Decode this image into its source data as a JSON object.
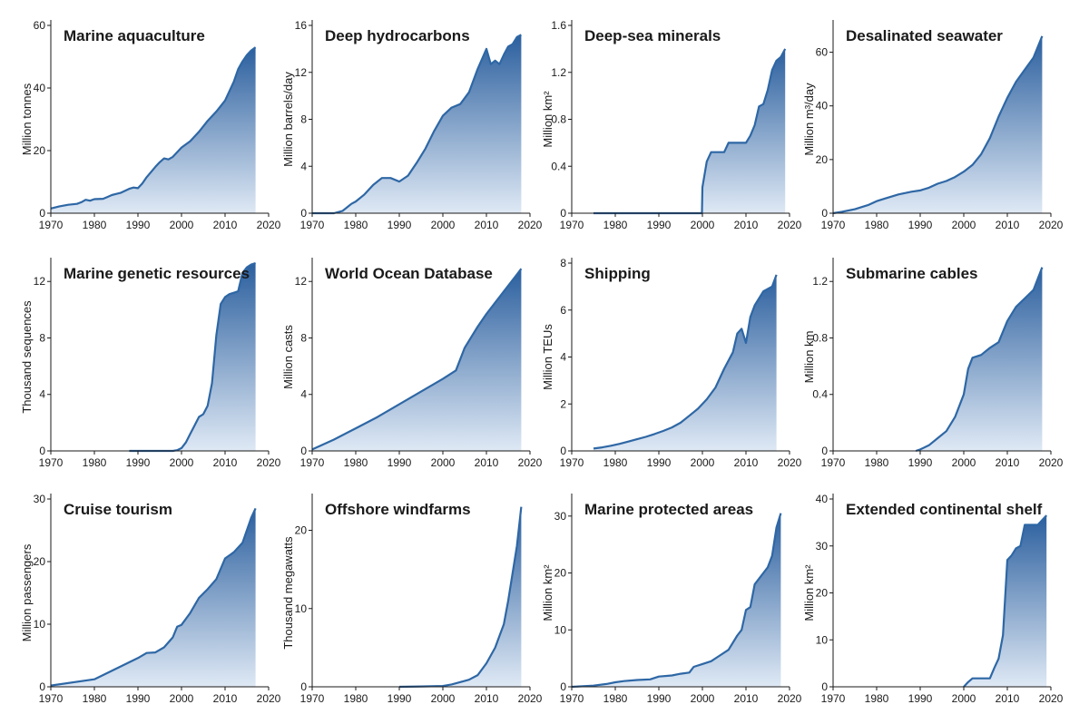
{
  "colors": {
    "line": "#2e67a5",
    "fill_top": "#2b5f9e",
    "fill_bottom": "#dfe9f5",
    "axis": "#1a1a1a"
  },
  "chart_data": [
    {
      "type": "area",
      "title": "Marine aquaculture",
      "ylabel": "Million tonnes",
      "xlim": [
        1970,
        2020
      ],
      "ylim": [
        0,
        60
      ],
      "xticks": [
        1970,
        1980,
        1990,
        2000,
        2010,
        2020
      ],
      "yticks": [
        0,
        20,
        40,
        60
      ],
      "ytick_labels": [
        "0",
        "20",
        "40",
        "60"
      ],
      "x": [
        1970,
        1972,
        1974,
        1976,
        1977,
        1978,
        1979,
        1980,
        1982,
        1983,
        1984,
        1986,
        1988,
        1989,
        1990,
        1991,
        1992,
        1994,
        1995,
        1996,
        1997,
        1998,
        2000,
        2002,
        2004,
        2006,
        2008,
        2010,
        2012,
        2013,
        2014,
        2015,
        2016,
        2017
      ],
      "y": [
        1.5,
        2.2,
        2.7,
        3.0,
        3.5,
        4.3,
        4.0,
        4.5,
        4.6,
        5.2,
        5.8,
        6.5,
        7.8,
        8.2,
        8.0,
        9.5,
        11.5,
        14.8,
        16.3,
        17.5,
        17.2,
        18.0,
        21.0,
        23.0,
        26.0,
        29.5,
        32.5,
        36.0,
        42.0,
        46.0,
        48.5,
        50.5,
        52.0,
        53.0
      ]
    },
    {
      "type": "area",
      "title": "Deep hydrocarbons",
      "ylabel": "Million barrels/day",
      "xlim": [
        1970,
        2020
      ],
      "ylim": [
        0,
        16
      ],
      "xticks": [
        1970,
        1980,
        1990,
        2000,
        2010,
        2020
      ],
      "yticks": [
        0,
        4,
        8,
        12,
        16
      ],
      "ytick_labels": [
        "0",
        "4",
        "8",
        "12",
        "16"
      ],
      "x": [
        1970,
        1975,
        1977,
        1979,
        1980,
        1982,
        1984,
        1986,
        1988,
        1990,
        1992,
        1994,
        1996,
        1998,
        2000,
        2002,
        2004,
        2006,
        2008,
        2010,
        2011,
        2012,
        2013,
        2014,
        2015,
        2016,
        2017,
        2018
      ],
      "y": [
        0,
        0,
        0.2,
        0.8,
        1.0,
        1.6,
        2.4,
        3.0,
        3.0,
        2.7,
        3.2,
        4.3,
        5.5,
        7.0,
        8.3,
        9.0,
        9.3,
        10.3,
        12.3,
        14.0,
        12.7,
        13.0,
        12.7,
        13.5,
        14.2,
        14.4,
        15.0,
        15.2
      ]
    },
    {
      "type": "area",
      "title": "Deep-sea minerals",
      "ylabel": "Million km²",
      "xlim": [
        1970,
        2020
      ],
      "ylim": [
        0,
        1.6
      ],
      "xticks": [
        1970,
        1980,
        1990,
        2000,
        2010,
        2020
      ],
      "yticks": [
        0,
        0.4,
        0.8,
        1.2,
        1.6
      ],
      "ytick_labels": [
        "0",
        "0.4",
        "0.8",
        "1.2",
        "1.6"
      ],
      "x": [
        1975,
        1999.9,
        2000,
        2001,
        2002,
        2003,
        2004,
        2005,
        2006,
        2007,
        2008,
        2009,
        2010,
        2011,
        2012,
        2013,
        2014,
        2015,
        2016,
        2017,
        2018,
        2019
      ],
      "y": [
        0,
        0,
        0.22,
        0.44,
        0.52,
        0.52,
        0.52,
        0.52,
        0.6,
        0.6,
        0.6,
        0.6,
        0.6,
        0.66,
        0.75,
        0.91,
        0.93,
        1.05,
        1.22,
        1.3,
        1.33,
        1.4
      ]
    },
    {
      "type": "area",
      "title": "Desalinated seawater",
      "ylabel": "Million m³/day",
      "xlim": [
        1970,
        2020
      ],
      "ylim": [
        0,
        70
      ],
      "xticks": [
        1970,
        1980,
        1990,
        2000,
        2010,
        2020
      ],
      "yticks": [
        0,
        20,
        40,
        60
      ],
      "ytick_labels": [
        "0",
        "20",
        "40",
        "60"
      ],
      "x": [
        1970,
        1972,
        1975,
        1978,
        1980,
        1982,
        1985,
        1988,
        1990,
        1992,
        1994,
        1996,
        1998,
        2000,
        2002,
        2004,
        2006,
        2008,
        2010,
        2012,
        2014,
        2016,
        2018
      ],
      "y": [
        0,
        0.5,
        1.5,
        3.0,
        4.5,
        5.5,
        7.0,
        8.0,
        8.5,
        9.5,
        11.0,
        12.0,
        13.5,
        15.5,
        18.0,
        22.0,
        28.0,
        36.0,
        43.0,
        49.0,
        53.5,
        58.0,
        66.0
      ]
    },
    {
      "type": "area",
      "title": "Marine genetic resources",
      "ylabel": "Thousand sequences",
      "xlim": [
        1970,
        2020
      ],
      "ylim": [
        0,
        13.3
      ],
      "xticks": [
        1970,
        1980,
        1990,
        2000,
        2010,
        2020
      ],
      "yticks": [
        0,
        4,
        8,
        12
      ],
      "ytick_labels": [
        "0",
        "4",
        "8",
        "12"
      ],
      "x": [
        1988,
        1995,
        1998,
        1999,
        2000,
        2001,
        2002,
        2003,
        2004,
        2005,
        2006,
        2007,
        2008,
        2009,
        2010,
        2011,
        2012,
        2013,
        2014,
        2015,
        2016,
        2017
      ],
      "y": [
        0,
        0,
        0,
        0.05,
        0.2,
        0.6,
        1.2,
        1.8,
        2.4,
        2.6,
        3.2,
        4.8,
        8.2,
        10.4,
        10.9,
        11.1,
        11.2,
        11.3,
        12.6,
        13.0,
        13.2,
        13.3
      ]
    },
    {
      "type": "area",
      "title": "World Ocean Database",
      "ylabel": "Million casts",
      "xlim": [
        1970,
        2020
      ],
      "ylim": [
        0,
        13.3
      ],
      "xticks": [
        1970,
        1980,
        1990,
        2000,
        2010,
        2020
      ],
      "yticks": [
        0,
        4,
        8,
        12
      ],
      "ytick_labels": [
        "0",
        "4",
        "8",
        "12"
      ],
      "x": [
        1970,
        1975,
        1980,
        1985,
        1990,
        1995,
        2000,
        2003,
        2005,
        2008,
        2010,
        2012,
        2015,
        2017,
        2018
      ],
      "y": [
        0.1,
        0.8,
        1.6,
        2.4,
        3.3,
        4.2,
        5.1,
        5.7,
        7.3,
        8.8,
        9.7,
        10.5,
        11.7,
        12.5,
        12.9
      ]
    },
    {
      "type": "area",
      "title": "Shipping",
      "ylabel": "Million TEUs",
      "xlim": [
        1970,
        2020
      ],
      "ylim": [
        0,
        8
      ],
      "xticks": [
        1970,
        1980,
        1990,
        2000,
        2010,
        2020
      ],
      "yticks": [
        0,
        2,
        4,
        6,
        8
      ],
      "ytick_labels": [
        "0",
        "2",
        "4",
        "6",
        "8"
      ],
      "x": [
        1975,
        1977,
        1979,
        1981,
        1983,
        1985,
        1987,
        1989,
        1991,
        1993,
        1995,
        1997,
        1999,
        2001,
        2003,
        2005,
        2007,
        2008,
        2009,
        2010,
        2011,
        2012,
        2013,
        2014,
        2015,
        2016,
        2017
      ],
      "y": [
        0.1,
        0.15,
        0.22,
        0.3,
        0.4,
        0.5,
        0.6,
        0.72,
        0.85,
        1.0,
        1.2,
        1.5,
        1.8,
        2.2,
        2.7,
        3.5,
        4.2,
        5.0,
        5.2,
        4.6,
        5.7,
        6.2,
        6.5,
        6.8,
        6.9,
        7.0,
        7.5
      ]
    },
    {
      "type": "area",
      "title": "Submarine cables",
      "ylabel": "Million km",
      "xlim": [
        1970,
        2020
      ],
      "ylim": [
        0,
        1.33
      ],
      "xticks": [
        1970,
        1980,
        1990,
        2000,
        2010,
        2020
      ],
      "yticks": [
        0,
        0.4,
        0.8,
        1.2
      ],
      "ytick_labels": [
        "0",
        "0.4",
        "0.8",
        "1.2"
      ],
      "x": [
        1989,
        1990,
        1992,
        1994,
        1996,
        1998,
        2000,
        2001,
        2002,
        2004,
        2006,
        2008,
        2010,
        2012,
        2014,
        2016,
        2018
      ],
      "y": [
        0,
        0.01,
        0.04,
        0.09,
        0.14,
        0.24,
        0.4,
        0.58,
        0.66,
        0.68,
        0.73,
        0.77,
        0.92,
        1.02,
        1.08,
        1.14,
        1.3
      ]
    },
    {
      "type": "area",
      "title": "Cruise tourism",
      "ylabel": "Million passengers",
      "xlim": [
        1970,
        2020
      ],
      "ylim": [
        0,
        30
      ],
      "xticks": [
        1970,
        1980,
        1990,
        2000,
        2010,
        2020
      ],
      "yticks": [
        0,
        10,
        20,
        30
      ],
      "ytick_labels": [
        "0",
        "10",
        "20",
        "30"
      ],
      "x": [
        1970,
        1980,
        1990,
        1992,
        1994,
        1996,
        1998,
        1999,
        2000,
        2002,
        2004,
        2006,
        2008,
        2010,
        2012,
        2014,
        2015,
        2016,
        2017
      ],
      "y": [
        0.2,
        1.2,
        4.6,
        5.4,
        5.5,
        6.3,
        7.9,
        9.6,
        9.9,
        11.8,
        14.2,
        15.6,
        17.2,
        20.5,
        21.5,
        23.0,
        25.0,
        27.0,
        28.5
      ]
    },
    {
      "type": "area",
      "title": "Offshore windfarms",
      "ylabel": "Thousand megawatts",
      "xlim": [
        1970,
        2020
      ],
      "ylim": [
        0,
        24
      ],
      "xticks": [
        1970,
        1980,
        1990,
        2000,
        2010,
        2020
      ],
      "yticks": [
        0,
        10,
        20
      ],
      "ytick_labels": [
        "0",
        "10",
        "20"
      ],
      "x": [
        1990,
        1995,
        2000,
        2002,
        2004,
        2006,
        2008,
        2010,
        2011,
        2012,
        2013,
        2014,
        2015,
        2016,
        2017,
        2018
      ],
      "y": [
        0,
        0.05,
        0.1,
        0.3,
        0.6,
        0.9,
        1.5,
        3.0,
        4.0,
        5.0,
        6.5,
        8.0,
        11.0,
        14.5,
        18.0,
        23.0
      ]
    },
    {
      "type": "area",
      "title": "Marine protected areas",
      "ylabel": "Million km²",
      "xlim": [
        1970,
        2020
      ],
      "ylim": [
        0,
        33
      ],
      "xticks": [
        1970,
        1980,
        1990,
        2000,
        2010,
        2020
      ],
      "yticks": [
        0,
        10,
        20,
        30
      ],
      "ytick_labels": [
        "0",
        "10",
        "20",
        "30"
      ],
      "x": [
        1970,
        1975,
        1978,
        1980,
        1982,
        1985,
        1988,
        1990,
        1993,
        1995,
        1997,
        1998,
        2000,
        2002,
        2004,
        2006,
        2008,
        2009,
        2010,
        2011,
        2012,
        2013,
        2014,
        2015,
        2016,
        2017,
        2018
      ],
      "y": [
        0,
        0.2,
        0.5,
        0.8,
        1.0,
        1.2,
        1.3,
        1.8,
        2.0,
        2.3,
        2.5,
        3.5,
        4.0,
        4.5,
        5.5,
        6.5,
        9.0,
        10.0,
        13.5,
        14.0,
        18.0,
        19.0,
        20.0,
        21.0,
        23.0,
        28.0,
        30.5
      ]
    },
    {
      "type": "area",
      "title": "Extended continental shelf",
      "ylabel": "Million km²",
      "xlim": [
        1970,
        2020
      ],
      "ylim": [
        0,
        40
      ],
      "xticks": [
        1970,
        1980,
        1990,
        2000,
        2010,
        2020
      ],
      "yticks": [
        0,
        10,
        20,
        30,
        40
      ],
      "ytick_labels": [
        "0",
        "10",
        "20",
        "30",
        "40"
      ],
      "x": [
        2000,
        2001,
        2002,
        2003,
        2004,
        2005,
        2006,
        2007,
        2008,
        2009,
        2010,
        2011,
        2012,
        2013,
        2014,
        2015,
        2016,
        2017,
        2018,
        2019
      ],
      "y": [
        0,
        1.0,
        1.8,
        1.8,
        1.8,
        1.8,
        1.8,
        4.0,
        6.0,
        11.0,
        27.0,
        28.0,
        29.5,
        30.0,
        34.5,
        34.5,
        34.5,
        34.5,
        35.5,
        36.5
      ]
    }
  ]
}
